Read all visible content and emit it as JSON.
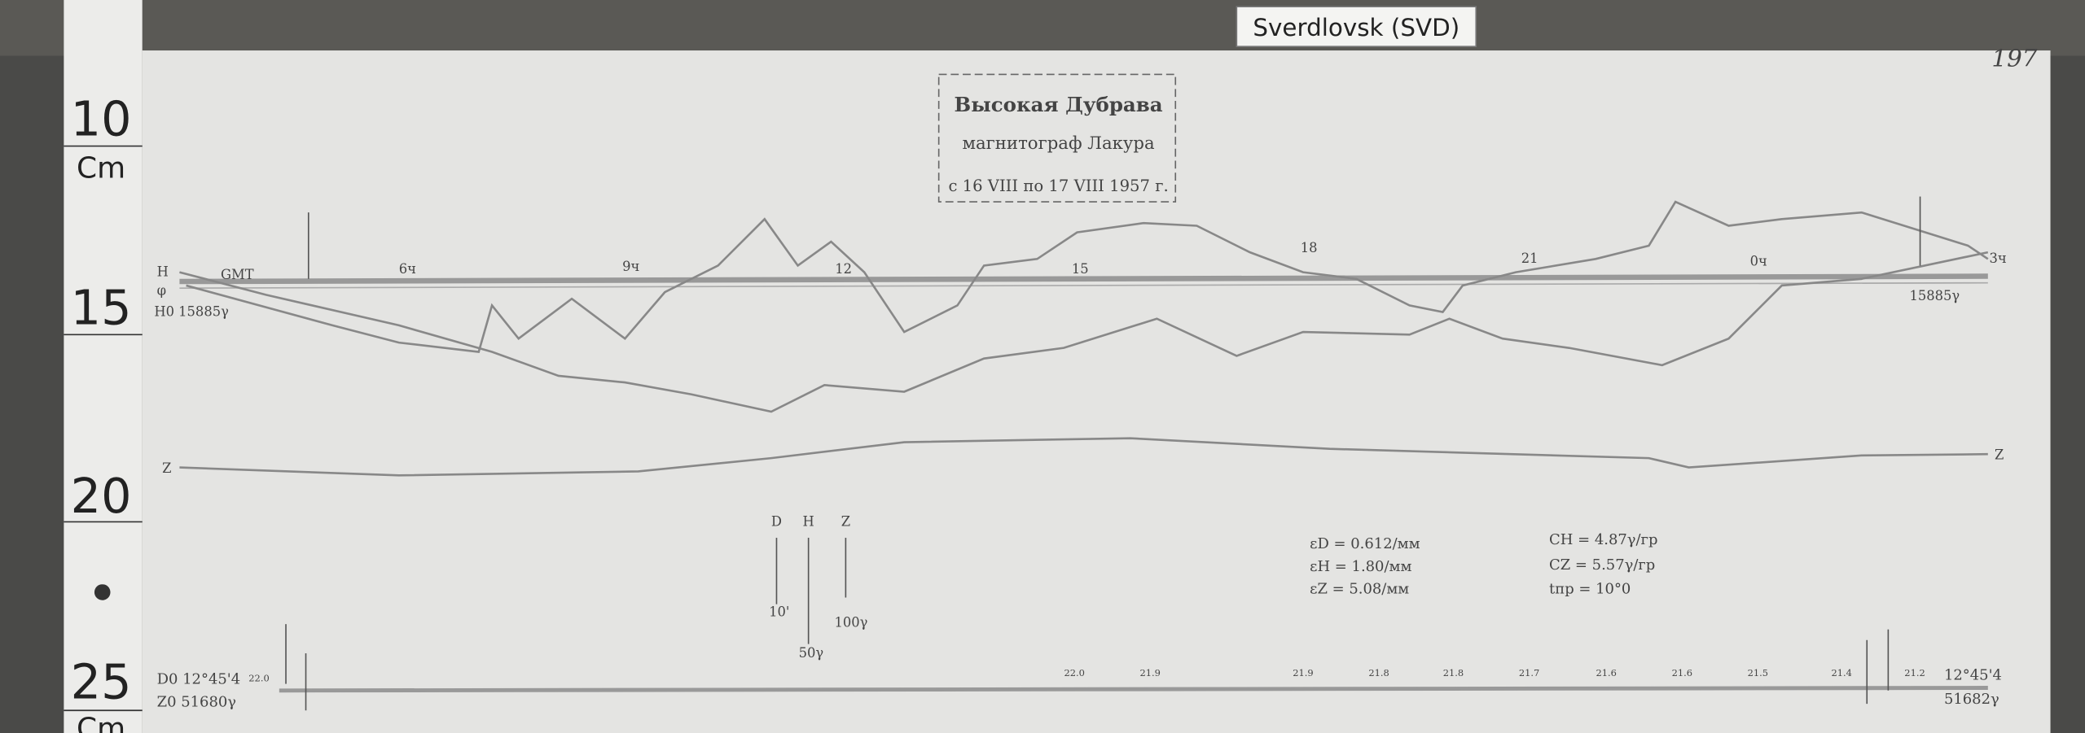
{
  "header": {
    "station": "Sverdlovsk (SVD)",
    "sheet_number": "197"
  },
  "ruler": {
    "labels": [
      "10",
      "Cm",
      "15",
      "20",
      "25",
      "Cm"
    ]
  },
  "stamp": {
    "line1": "Высокая Дубрава",
    "line2": "магнитограф Лакура",
    "line3": "с 16 VIII по 17 VIII 1957 г."
  },
  "record": {
    "hours": [
      "6ч",
      "9ч",
      "12",
      "15",
      "18",
      "21",
      "0ч",
      "3ч"
    ],
    "left_labels": {
      "h": "H",
      "gmt": "GMT",
      "phi": "φ",
      "h0": "H0 15885γ",
      "z": "Z"
    },
    "right_labels": {
      "h0": "15885γ",
      "z": "Z"
    },
    "scales": {
      "d": "D",
      "h": "H",
      "z": "Z",
      "d_value": "10'",
      "h_value": "50γ",
      "z_value": "100γ"
    },
    "constants": [
      "εD = 0.612/мм",
      "εH = 1.80/мм",
      "εZ = 5.08/мм"
    ],
    "coefficients": [
      "CH = 4.87γ/гр",
      "CZ = 5.57γ/гр",
      "tпр = 10°0"
    ],
    "base_left": {
      "d0": "D0 12°45'4",
      "z0": "Z0 51680γ",
      "t0": "22.0"
    },
    "base_right": {
      "d0": "12°45'4",
      "z0": "51682γ"
    },
    "temperatures": [
      "22.0",
      "21.9",
      "21.9",
      "21.8",
      "21.8",
      "21.7",
      "21.6",
      "21.6",
      "21.5",
      "21.4",
      "21.2"
    ]
  }
}
